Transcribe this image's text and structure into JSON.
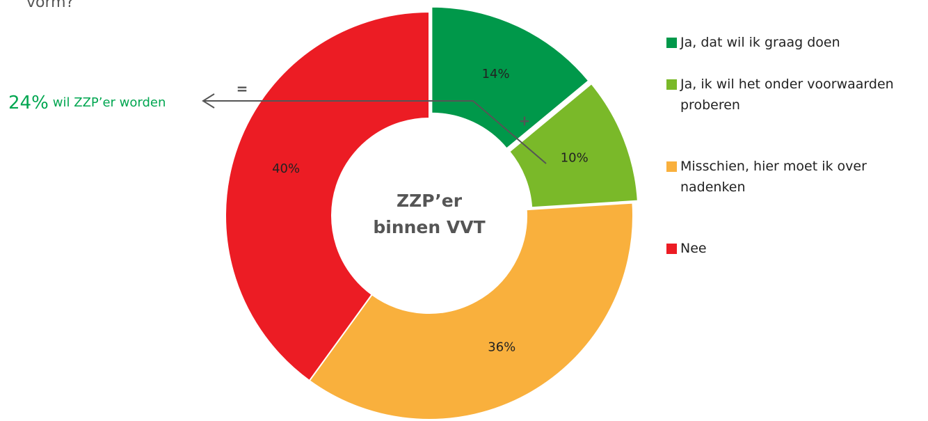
{
  "header_text": "vorm?",
  "chart_data": {
    "type": "pie",
    "donut": true,
    "center_label": [
      "ZZP’er",
      "binnen VVT"
    ],
    "categories": [
      "Ja, dat wil ik graag doen",
      "Ja, ik wil het onder voorwaarden proberen",
      "Misschien, hier moet ik over nadenken",
      "Nee"
    ],
    "values": [
      14,
      10,
      36,
      40
    ],
    "value_labels": [
      "14%",
      "10%",
      "36%",
      "40%"
    ],
    "colors": [
      "#00984a",
      "#7ab929",
      "#f9b03d",
      "#ec1c24"
    ],
    "exploded": [
      true,
      true,
      false,
      false
    ],
    "annotations": {
      "big": "24%",
      "small": "wil ZZP’er worden",
      "equals": "=",
      "plus": "+"
    }
  }
}
